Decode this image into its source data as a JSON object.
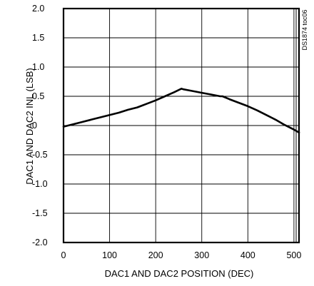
{
  "chart_data": {
    "type": "line",
    "xlabel": "DAC1 AND DAC2 POSITION (DEC)",
    "ylabel": "DAC1 AND DAC2 INL (LSB)",
    "xlim": [
      0,
      511
    ],
    "ylim": [
      -2.0,
      2.0
    ],
    "xticks": [
      0,
      100,
      200,
      300,
      400,
      500
    ],
    "xtick_labels": [
      "0",
      "100",
      "200",
      "300",
      "400",
      "500"
    ],
    "yticks": [
      2.0,
      1.5,
      1.0,
      0.5,
      0,
      -0.5,
      -1.0,
      -1.5,
      -2.0
    ],
    "ytick_labels": [
      "2.0",
      "1.5",
      "1.0",
      "0.5",
      "0",
      "-0.5",
      "-1.0",
      "-1.5",
      "-2.0"
    ],
    "grid": true,
    "annotation": "DS1874 toc06",
    "series": [
      {
        "x": [
          0,
          20,
          40,
          60,
          80,
          100,
          120,
          140,
          160,
          170,
          180,
          200,
          220,
          240,
          256,
          260,
          280,
          300,
          320,
          340,
          345,
          360,
          380,
          400,
          420,
          440,
          460,
          480,
          500,
          511
        ],
        "y": [
          -0.02,
          0.02,
          0.06,
          0.1,
          0.14,
          0.18,
          0.22,
          0.27,
          0.31,
          0.34,
          0.37,
          0.43,
          0.5,
          0.57,
          0.63,
          0.62,
          0.59,
          0.56,
          0.53,
          0.5,
          0.5,
          0.45,
          0.39,
          0.33,
          0.26,
          0.18,
          0.1,
          0.01,
          -0.07,
          -0.12
        ]
      }
    ]
  }
}
